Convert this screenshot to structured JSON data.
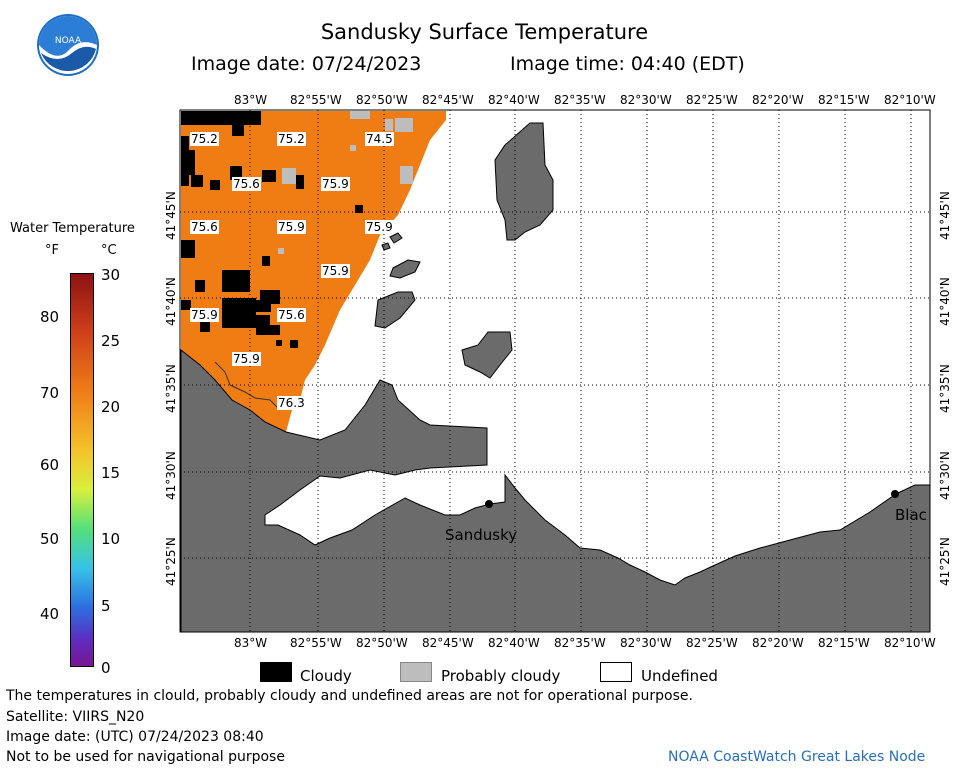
{
  "header": {
    "title": "Sandusky Surface Temperature",
    "image_date": "Image date: 07/24/2023",
    "image_time": "Image time: 04:40 (EDT)",
    "logo_text": "NOAA"
  },
  "colorbar": {
    "title": "Water Temperature",
    "unit_f": "°F",
    "unit_c": "°C",
    "f_ticks": [
      "80",
      "70",
      "60",
      "50",
      "40"
    ],
    "c_ticks": [
      "30",
      "25",
      "20",
      "15",
      "10",
      "5",
      "0"
    ]
  },
  "axes": {
    "lon_labels": [
      "83°W",
      "82°55'W",
      "82°50'W",
      "82°45'W",
      "82°40'W",
      "82°35'W",
      "82°30'W",
      "82°25'W",
      "82°20'W",
      "82°15'W",
      "82°10'W"
    ],
    "lat_labels": [
      "41°45'N",
      "41°40'N",
      "41°35'N",
      "41°30'N",
      "41°25'N"
    ]
  },
  "temperature_labels": [
    "75.2",
    "75.2",
    "74.5",
    "75.6",
    "75.9",
    "75.6",
    "75.9",
    "75.9",
    "75.9",
    "75.9",
    "75.6",
    "75.9",
    "76.3"
  ],
  "places": {
    "sandusky": "Sandusky",
    "bay_partial": "Blac"
  },
  "legend": {
    "cloudy": "Cloudy",
    "probably_cloudy": "Probably cloudy",
    "undefined": "Undefined"
  },
  "footer": {
    "disclaimer": "The temperatures in clould, probably cloudy and undefined areas are not for operational purpose.",
    "satellite": "Satellite: VIIRS_N20",
    "utc_date": "Image date: (UTC) 07/24/2023  08:40",
    "navigation": "Not to be used for navigational purpose",
    "credit": "NOAA CoastWatch Great Lakes Node"
  },
  "colors": {
    "water_orange": "#f07d14",
    "land": "#6b6b6b",
    "cloud": "#000000",
    "probably_cloudy": "#bdbdbd",
    "credit_blue": "#2a6fb5"
  }
}
